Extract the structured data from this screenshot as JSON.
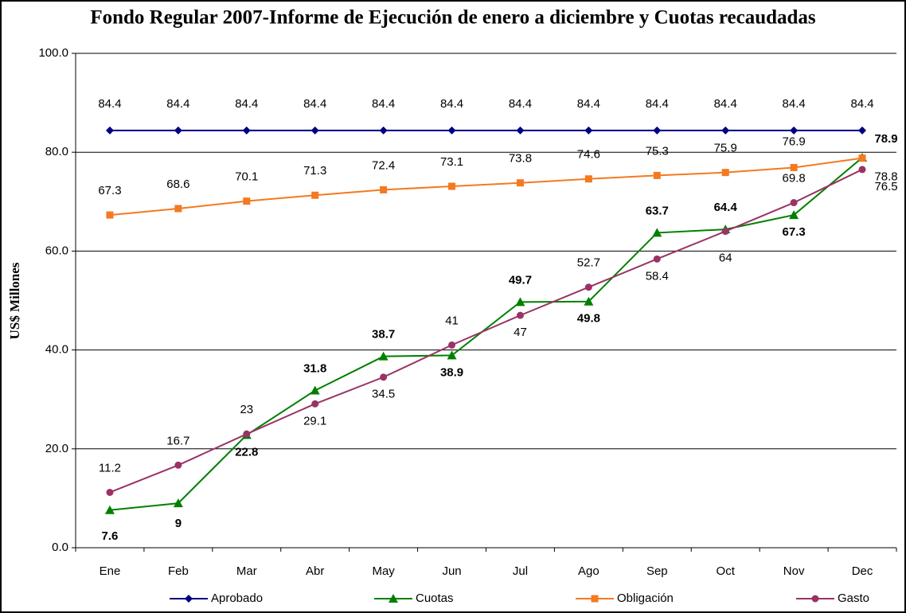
{
  "chart_data": {
    "type": "line",
    "title": "Fondo Regular 2007-Informe de Ejecución de enero a diciembre y Cuotas recaudadas",
    "y_label": "US$ Millones",
    "categories": [
      "Ene",
      "Feb",
      "Mar",
      "Abr",
      "May",
      "Jun",
      "Jul",
      "Ago",
      "Sep",
      "Oct",
      "Nov",
      "Dec"
    ],
    "ylim": [
      0,
      100
    ],
    "yticks": [
      {
        "value": 0,
        "label": "0.0"
      },
      {
        "value": 20,
        "label": "20.0"
      },
      {
        "value": 40,
        "label": "40.0"
      },
      {
        "value": 60,
        "label": "60.0"
      },
      {
        "value": 80,
        "label": "80.0"
      },
      {
        "value": 100,
        "label": "100.0"
      }
    ],
    "grid": true,
    "legend": "bottom",
    "series": [
      {
        "name": "Aprobado",
        "color": "#000080",
        "marker": "diamond",
        "values": [
          84.4,
          84.4,
          84.4,
          84.4,
          84.4,
          84.4,
          84.4,
          84.4,
          84.4,
          84.4,
          84.4,
          84.4
        ]
      },
      {
        "name": "Cuotas",
        "color": "#008000",
        "marker": "triangle",
        "values": [
          7.6,
          9,
          22.8,
          31.8,
          38.7,
          38.9,
          49.7,
          49.8,
          63.7,
          64.4,
          67.3,
          78.9
        ]
      },
      {
        "name": "Obligación",
        "color": "#f47920",
        "marker": "square",
        "values": [
          67.3,
          68.6,
          70.1,
          71.3,
          72.4,
          73.1,
          73.8,
          74.6,
          75.3,
          75.9,
          76.9,
          78.8
        ]
      },
      {
        "name": "Gasto",
        "color": "#993366",
        "marker": "circle",
        "values": [
          11.2,
          16.7,
          23,
          29.1,
          34.5,
          41,
          47,
          52.7,
          58.4,
          64,
          69.8,
          76.5
        ]
      }
    ]
  }
}
